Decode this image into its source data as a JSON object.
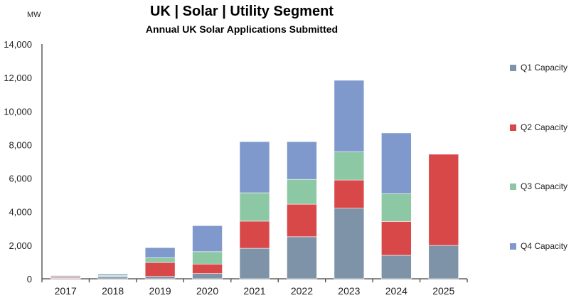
{
  "chart_data": {
    "type": "bar",
    "stacked": true,
    "title": "UK | Solar | Utility Segment",
    "subtitle": "Annual UK Solar Applications Submitted",
    "ylabel": "MW",
    "ylim": [
      0,
      14000
    ],
    "yticks": [
      "0",
      "2,000",
      "4,000",
      "6,000",
      "8,000",
      "10,000",
      "12,000",
      "14,000"
    ],
    "grid": false,
    "legend_position": "right",
    "categories": [
      "2017",
      "2018",
      "2019",
      "2020",
      "2021",
      "2022",
      "2023",
      "2024",
      "2025"
    ],
    "series": [
      {
        "name": "Q1 Capacity",
        "color": "#7f93a8",
        "values": [
          20,
          120,
          140,
          310,
          1820,
          2510,
          4210,
          1400,
          1990
        ]
      },
      {
        "name": "Q2 Capacity",
        "color": "#d94848",
        "values": [
          60,
          20,
          830,
          570,
          1620,
          1940,
          1680,
          2020,
          5440
        ]
      },
      {
        "name": "Q3 Capacity",
        "color": "#8dc8a5",
        "values": [
          50,
          60,
          280,
          740,
          1690,
          1480,
          1680,
          1660,
          0
        ]
      },
      {
        "name": "Q4 Capacity",
        "color": "#7f99cc",
        "values": [
          60,
          80,
          610,
          1550,
          3050,
          2250,
          4270,
          3620,
          0
        ]
      }
    ]
  }
}
